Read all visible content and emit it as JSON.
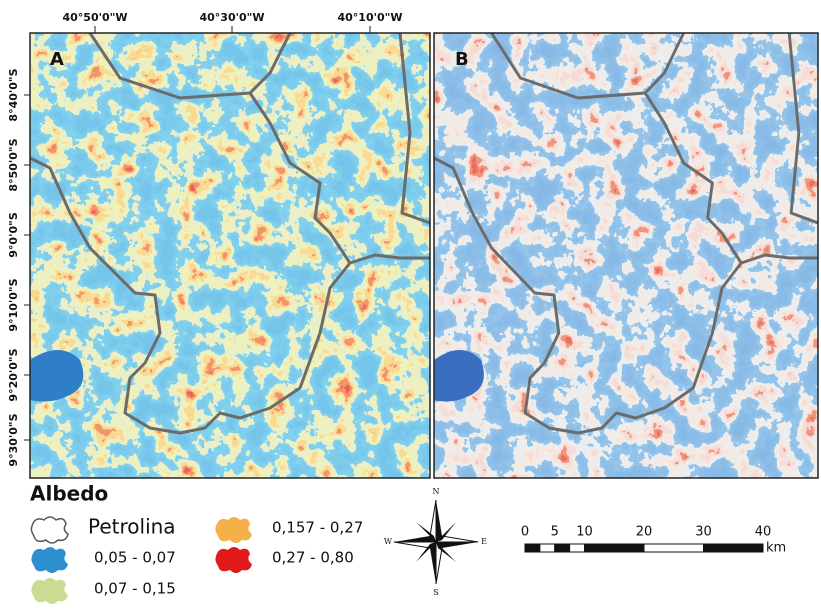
{
  "map": {
    "panels": [
      {
        "label": "A"
      },
      {
        "label": "B"
      }
    ],
    "longitude_labels": [
      "40°50'0\"W",
      "40°30'0\"W",
      "40°10'0\"W"
    ],
    "latitude_labels": [
      "8°40'0\"S",
      "8°50'0\"S",
      "9°0'0\"S",
      "9°10'0\"S",
      "9°20'0\"S",
      "9°30'0\"S"
    ],
    "legend": {
      "title": "Albedo",
      "items": [
        {
          "label": "Petrolina",
          "color": "#ffffff"
        },
        {
          "label": "0,05 - 0,07",
          "color": "#2e8fcf"
        },
        {
          "label": "0,07 - 0,15",
          "color": "#c9dc92"
        },
        {
          "label": "0,157 - 0,27",
          "color": "#f6b04a"
        },
        {
          "label": "0,27 - 0,80",
          "color": "#e0191b"
        }
      ]
    },
    "compass": {
      "north": "N",
      "south": "S",
      "west": "W",
      "east": "E"
    },
    "scale": {
      "ticks": [
        0,
        5,
        10,
        20,
        30,
        40
      ],
      "unit": "km"
    }
  }
}
